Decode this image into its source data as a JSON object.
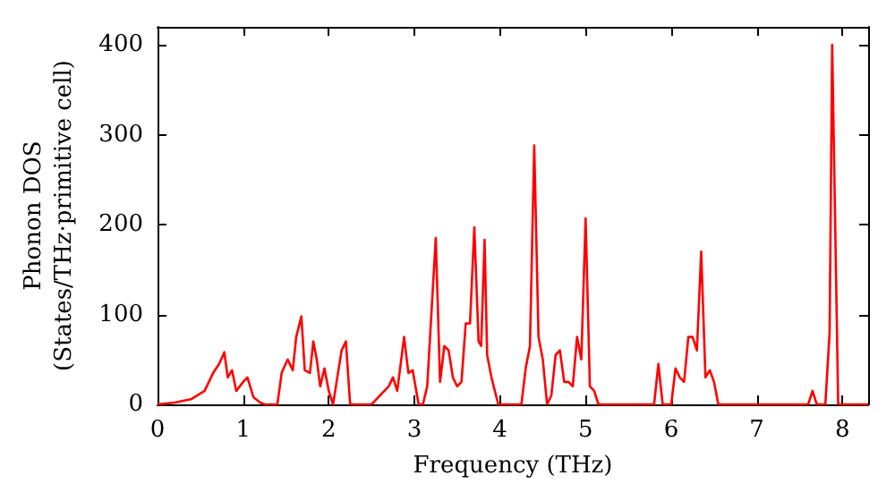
{
  "chart_data": {
    "type": "line",
    "xlabel": "Frequency (THz)",
    "ylabel": "Phonon DOS\n(States/THz·primitive cell)",
    "x": [
      0,
      0.2,
      0.4,
      0.55,
      0.65,
      0.72,
      0.78,
      0.82,
      0.87,
      0.92,
      1.0,
      1.05,
      1.12,
      1.2,
      1.25,
      1.4,
      1.45,
      1.52,
      1.58,
      1.62,
      1.68,
      1.72,
      1.78,
      1.82,
      1.86,
      1.9,
      1.95,
      2.0,
      2.05,
      2.1,
      2.15,
      2.2,
      2.25,
      2.5,
      2.6,
      2.7,
      2.75,
      2.8,
      2.88,
      2.93,
      2.98,
      3.05,
      3.1,
      3.15,
      3.25,
      3.3,
      3.35,
      3.4,
      3.45,
      3.5,
      3.55,
      3.6,
      3.65,
      3.7,
      3.75,
      3.78,
      3.82,
      3.85,
      3.9,
      3.98,
      4.25,
      4.3,
      4.35,
      4.4,
      4.45,
      4.5,
      4.55,
      4.6,
      4.65,
      4.7,
      4.75,
      4.8,
      4.85,
      4.9,
      4.95,
      5.0,
      5.05,
      5.1,
      5.15,
      5.8,
      5.85,
      5.9,
      6.0,
      6.05,
      6.1,
      6.15,
      6.2,
      6.25,
      6.3,
      6.35,
      6.4,
      6.45,
      6.5,
      6.55,
      7.6,
      7.65,
      7.7,
      7.8,
      7.85,
      7.88,
      7.95,
      8.3
    ],
    "series": [
      {
        "color": "#ff0000",
        "values": [
          0,
          2,
          6,
          15,
          35,
          45,
          58,
          30,
          38,
          15,
          25,
          30,
          8,
          2,
          0,
          0,
          35,
          50,
          38,
          75,
          98,
          38,
          35,
          70,
          50,
          20,
          40,
          15,
          0,
          30,
          60,
          70,
          0,
          0,
          10,
          20,
          30,
          15,
          75,
          35,
          38,
          0,
          0,
          20,
          185,
          25,
          65,
          60,
          30,
          20,
          25,
          90,
          90,
          197,
          70,
          65,
          183,
          55,
          30,
          0,
          0,
          40,
          65,
          288,
          75,
          50,
          0,
          10,
          55,
          60,
          25,
          25,
          20,
          75,
          50,
          207,
          20,
          15,
          0,
          0,
          45,
          0,
          0,
          40,
          30,
          25,
          75,
          75,
          60,
          170,
          30,
          38,
          25,
          0,
          0,
          15,
          0,
          0,
          80,
          400,
          0,
          0
        ]
      }
    ],
    "xlim": [
      0,
      8.3
    ],
    "xticks": [
      0,
      1,
      2,
      3,
      4,
      5,
      6,
      7,
      8
    ],
    "ylim": [
      0,
      420
    ],
    "yticks": [
      0,
      100,
      200,
      300,
      400
    ],
    "grid": false,
    "marker": "none",
    "line_style": "solid"
  }
}
